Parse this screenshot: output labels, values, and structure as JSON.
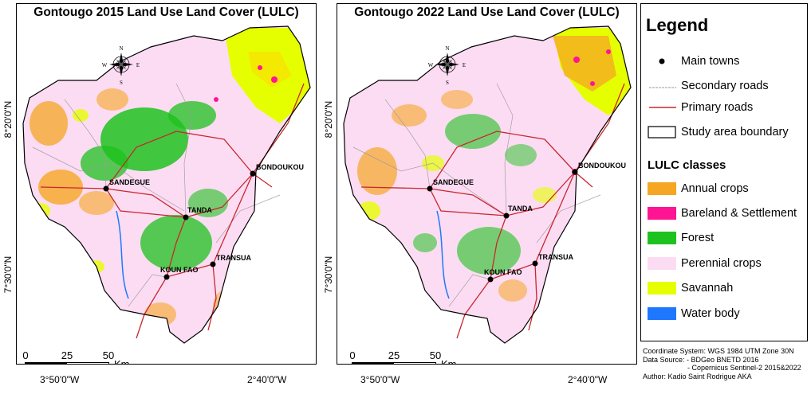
{
  "maps": [
    {
      "id": "2015",
      "title": "Gontougo 2015 Land Use Land Cover (LULC)",
      "scale": {
        "ticks": [
          "0",
          "25",
          "50"
        ],
        "unit": "Km"
      },
      "latitude_labels": [
        "8°20'0\"N",
        "7°30'0\"N"
      ],
      "longitude_labels": [
        "3°50'0\"W",
        "2°40'0\"W"
      ]
    },
    {
      "id": "2022",
      "title": "Gontougo 2022 Land Use Land Cover (LULC)",
      "scale": {
        "ticks": [
          "0",
          "25",
          "50"
        ],
        "unit": "Km"
      },
      "latitude_labels": [
        "8°20'0\"N",
        "7°30'0\"N"
      ],
      "longitude_labels": [
        "3°50'0\"W",
        "2°40'0\"W"
      ]
    }
  ],
  "compass": {
    "n": "N",
    "s": "S",
    "e": "E",
    "w": "W"
  },
  "towns": [
    "BONDOUKOU",
    "SANDEGUE",
    "TANDA",
    "TRANSUA",
    "KOUN FAO"
  ],
  "legend": {
    "title": "Legend",
    "items": [
      {
        "label": "Main towns",
        "symbol": "dot"
      },
      {
        "label": "Secondary roads",
        "symbol": "secondary-road",
        "color": "#9a9a9a"
      },
      {
        "label": "Primary roads",
        "symbol": "primary-road",
        "color": "#c8272d"
      },
      {
        "label": "Study area boundary",
        "symbol": "boundary"
      }
    ],
    "lulc_title": "LULC classes",
    "lulc_classes": [
      {
        "label": "Annual crops",
        "color": "#f5a623"
      },
      {
        "label": "Bareland & Settlement",
        "color": "#ff1493"
      },
      {
        "label": "Forest",
        "color": "#1ec21e"
      },
      {
        "label": "Perennial crops",
        "color": "#fcdcf3"
      },
      {
        "label": "Savannah",
        "color": "#e6ff00"
      },
      {
        "label": "Water body",
        "color": "#1e78ff"
      }
    ]
  },
  "credits": {
    "line1": "Coordinate System: WGS 1984 UTM Zone 30N",
    "line2": "Data Source: - BDGeo BNETD 2016",
    "line3": "- Copernicus Sentinel-2 2015&2022",
    "line4": "Author: Kadio Saint Rodrigue AKA"
  }
}
